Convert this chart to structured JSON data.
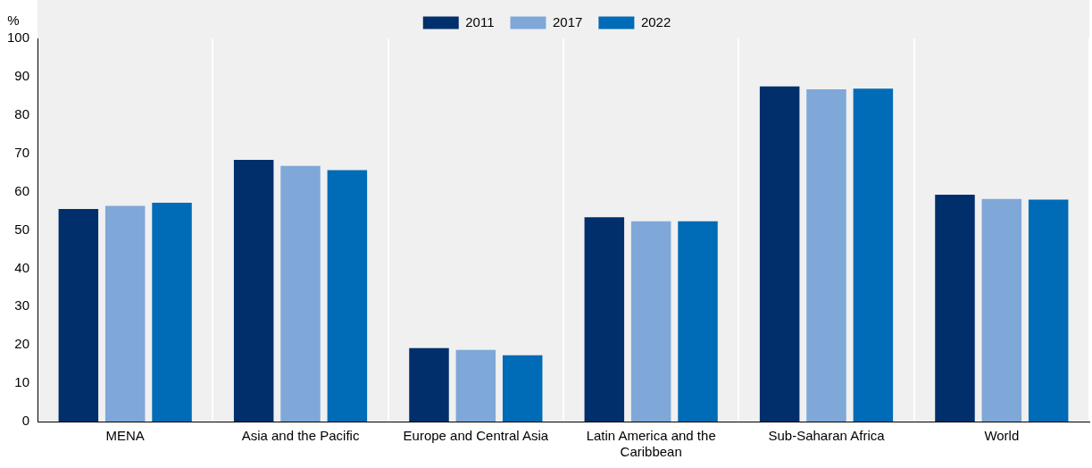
{
  "chart_data": {
    "type": "bar",
    "ylabel": "%",
    "categories": [
      "MENA",
      "Asia and the Pacific",
      "Europe and Central Asia",
      "Latin America and the Caribbean",
      "Sub-Saharan Africa",
      "World"
    ],
    "series": [
      {
        "name": "2011",
        "color": "#002f6c",
        "values": [
          55.5,
          68.3,
          19.2,
          53.3,
          87.5,
          59.2
        ]
      },
      {
        "name": "2017",
        "color": "#7fa8d9",
        "values": [
          56.3,
          66.7,
          18.7,
          52.3,
          86.7,
          58.1
        ]
      },
      {
        "name": "2022",
        "color": "#006bb6",
        "values": [
          57.1,
          65.6,
          17.3,
          52.3,
          86.9,
          57.9
        ]
      }
    ],
    "ylim": [
      0,
      100
    ],
    "yticks": [
      0,
      10,
      20,
      30,
      40,
      50,
      60,
      70,
      80,
      90,
      100
    ],
    "grid": "x",
    "legend": "top"
  }
}
